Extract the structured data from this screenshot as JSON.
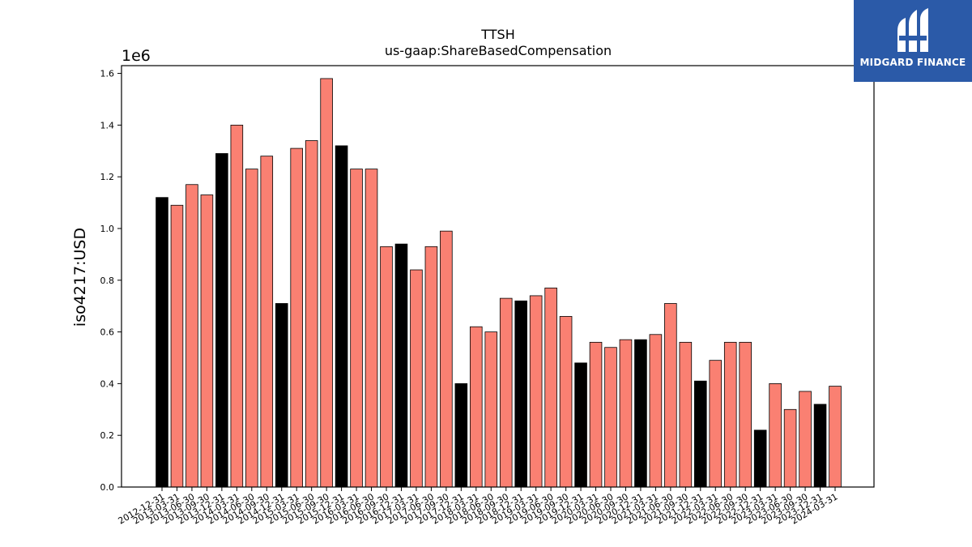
{
  "brand": {
    "name": "MIDGARD FINANCE",
    "color": "#2b5aa8",
    "icon": "midgard-logo-icon"
  },
  "chart_data": {
    "type": "bar",
    "title": "TTSH",
    "subtitle": "us-gaap:ShareBasedCompensation",
    "ylabel": "iso4217:USD",
    "xlabel": "",
    "y_scale_label": "1e6",
    "ylim": [
      0,
      1.63
    ],
    "yticks": [
      "0.0",
      "0.2",
      "0.4",
      "0.6",
      "0.8",
      "1.0",
      "1.2",
      "1.4",
      "1.6"
    ],
    "ytick_values": [
      0,
      0.2,
      0.4,
      0.6,
      0.8,
      1.0,
      1.2,
      1.4,
      1.6
    ],
    "grid": false,
    "colors": {
      "annual": "#000000",
      "quarterly": "#fa8072",
      "edge": "#000000"
    },
    "categories": [
      "2012-12-31",
      "2013-03-31",
      "2013-06-30",
      "2013-09-30",
      "2013-12-31",
      "2014-03-31",
      "2014-06-30",
      "2014-09-30",
      "2014-12-31",
      "2015-03-31",
      "2015-06-30",
      "2015-09-30",
      "2015-12-31",
      "2016-03-31",
      "2016-06-30",
      "2016-09-30",
      "2016-12-31",
      "2017-03-31",
      "2017-06-30",
      "2017-09-30",
      "2017-12-31",
      "2018-03-31",
      "2018-06-30",
      "2018-09-30",
      "2018-12-31",
      "2019-03-31",
      "2019-06-30",
      "2019-09-30",
      "2019-12-31",
      "2020-03-31",
      "2020-06-30",
      "2020-09-30",
      "2020-12-31",
      "2021-03-31",
      "2021-06-30",
      "2021-09-30",
      "2021-12-31",
      "2022-03-31",
      "2022-06-30",
      "2022-09-30",
      "2022-12-31",
      "2023-03-31",
      "2023-06-30",
      "2023-09-30",
      "2023-12-31",
      "2024-03-31"
    ],
    "values": [
      1.12,
      1.09,
      1.17,
      1.13,
      1.29,
      1.4,
      1.23,
      1.28,
      0.71,
      1.31,
      1.34,
      1.58,
      1.32,
      1.23,
      1.23,
      0.93,
      0.94,
      0.84,
      0.93,
      0.99,
      0.4,
      0.62,
      0.6,
      0.73,
      0.72,
      0.74,
      0.77,
      0.66,
      0.48,
      0.56,
      0.54,
      0.57,
      0.57,
      0.59,
      0.71,
      0.56,
      0.41,
      0.49,
      0.56,
      0.56,
      0.22,
      0.4,
      0.3,
      0.37,
      0.32,
      0.39
    ],
    "annual_flags": [
      true,
      false,
      false,
      false,
      true,
      false,
      false,
      false,
      true,
      false,
      false,
      false,
      true,
      false,
      false,
      false,
      true,
      false,
      false,
      false,
      true,
      false,
      false,
      false,
      true,
      false,
      false,
      false,
      true,
      false,
      false,
      false,
      true,
      false,
      false,
      false,
      true,
      false,
      false,
      false,
      true,
      false,
      false,
      false,
      true,
      false
    ]
  }
}
